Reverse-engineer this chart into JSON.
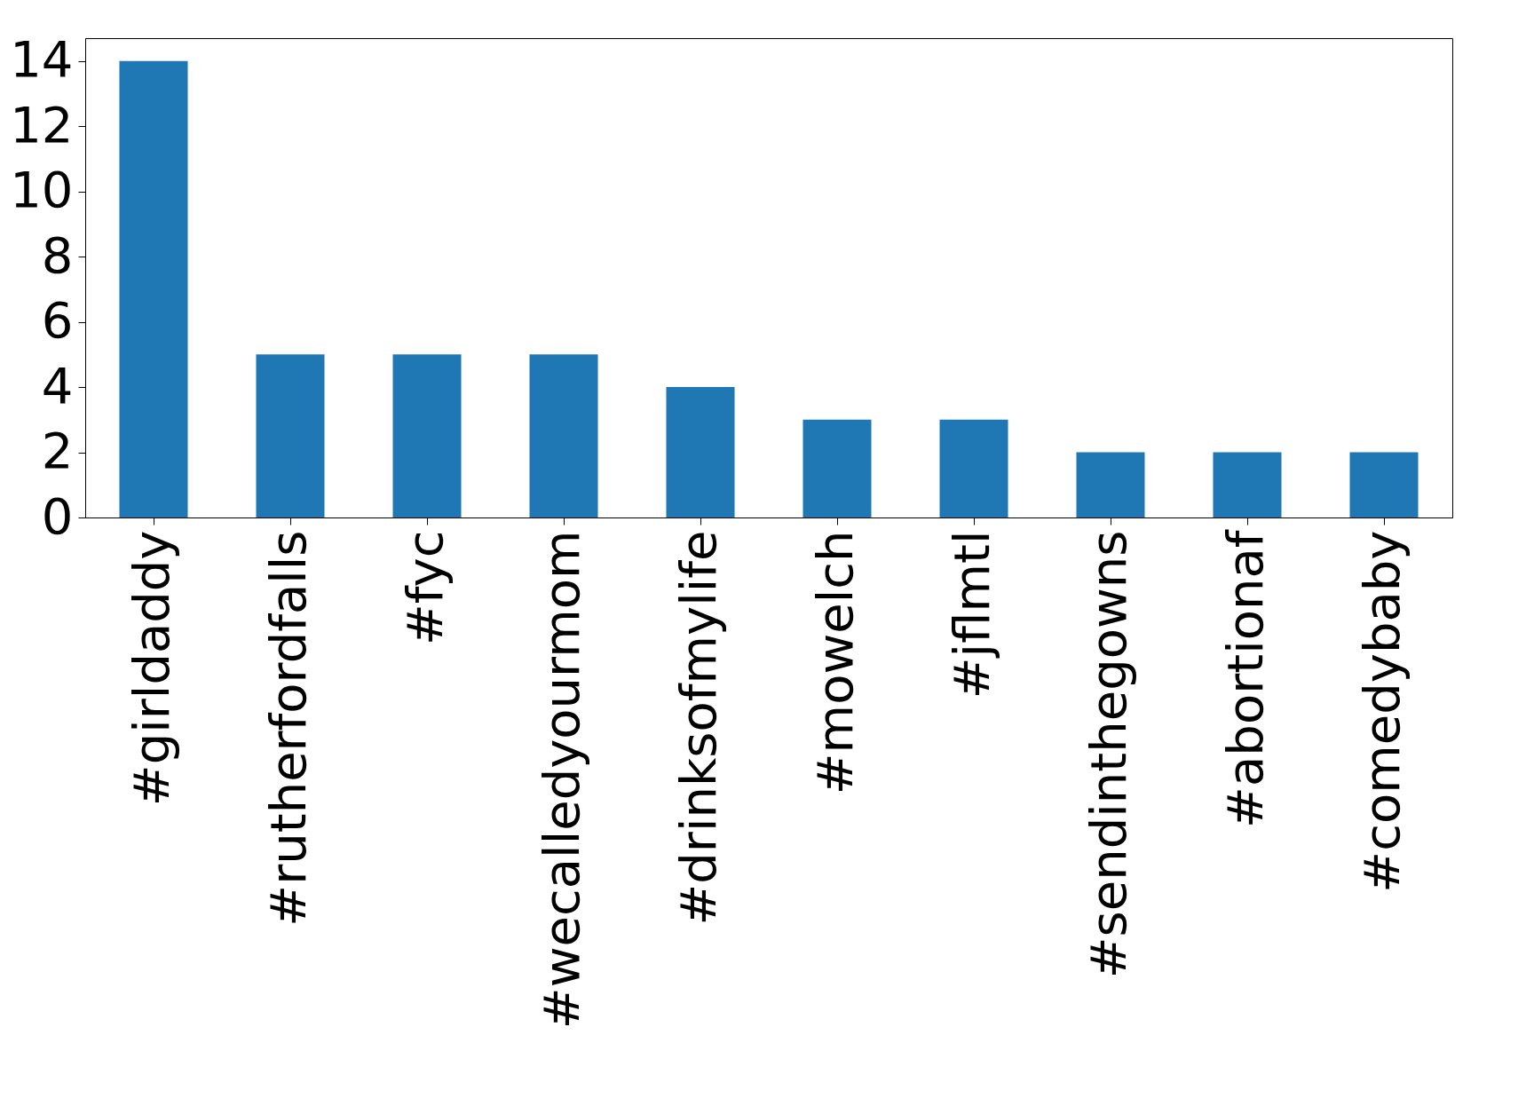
{
  "chart_data": {
    "type": "bar",
    "categories": [
      "#girldaddy",
      "#rutherfordfalls",
      "#fyc",
      "#wecalledyourmom",
      "#drinksofmylife",
      "#mowelch",
      "#jflmtl",
      "#sendinthegowns",
      "#abortionaf",
      "#comedybaby"
    ],
    "values": [
      14,
      5,
      5,
      5,
      4,
      3,
      3,
      2,
      2,
      2
    ],
    "color": "#1f77b4",
    "ylim": [
      0,
      14.7
    ],
    "yticks": [
      0,
      2,
      4,
      6,
      8,
      10,
      12,
      14
    ],
    "grid": false
  }
}
